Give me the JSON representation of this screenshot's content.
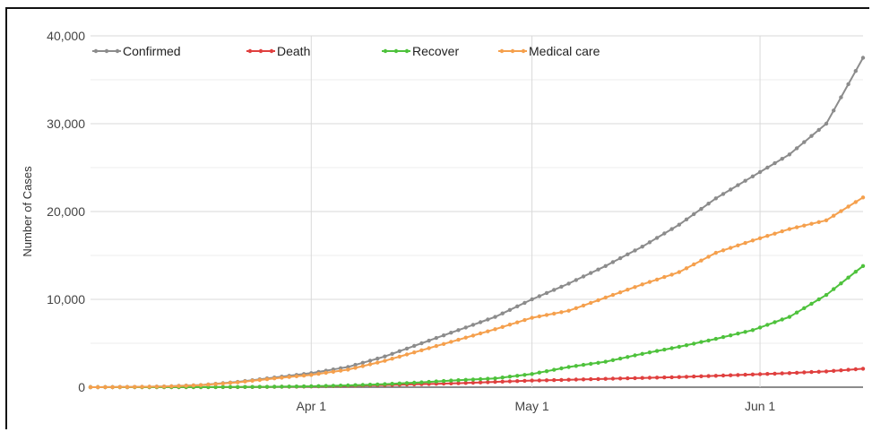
{
  "chart_data": {
    "type": "line",
    "title": "",
    "xlabel": "",
    "ylabel": "Number of Cases",
    "ylim": [
      0,
      40000
    ],
    "yticks": [
      "0",
      "10,000",
      "20,000",
      "30,000",
      "40,000"
    ],
    "ytick_values": [
      0,
      10000,
      20000,
      30000,
      40000
    ],
    "xticks": [
      "Apr 1",
      "May 1",
      "Jun 1"
    ],
    "xtick_dates": [
      "2020-04-01",
      "2020-05-01",
      "2020-06-01"
    ],
    "x": [
      "2020-03-02",
      "2020-03-07",
      "2020-03-12",
      "2020-03-17",
      "2020-03-22",
      "2020-03-27",
      "2020-04-01",
      "2020-04-06",
      "2020-04-11",
      "2020-04-16",
      "2020-04-21",
      "2020-04-26",
      "2020-05-01",
      "2020-05-06",
      "2020-05-11",
      "2020-05-16",
      "2020-05-21",
      "2020-05-26",
      "2020-05-31",
      "2020-06-05",
      "2020-06-10",
      "2020-06-15"
    ],
    "legend_position": "top",
    "grid": true,
    "series": [
      {
        "name": "Confirmed",
        "color": "#8c8c8c",
        "values": [
          0,
          20,
          80,
          250,
          600,
          1100,
          1600,
          2300,
          3500,
          5000,
          6500,
          8000,
          10000,
          11800,
          13800,
          16000,
          18500,
          21500,
          24000,
          26500,
          30000,
          37500
        ]
      },
      {
        "name": "Death",
        "color": "#e0403f",
        "values": [
          0,
          0,
          2,
          5,
          15,
          40,
          80,
          150,
          250,
          350,
          450,
          600,
          750,
          850,
          950,
          1050,
          1150,
          1300,
          1450,
          1600,
          1800,
          2100
        ]
      },
      {
        "name": "Recover",
        "color": "#4ec23c",
        "values": [
          0,
          0,
          5,
          10,
          20,
          50,
          100,
          200,
          350,
          550,
          800,
          1000,
          1500,
          2300,
          2900,
          3800,
          4600,
          5500,
          6500,
          8000,
          10500,
          13800
        ]
      },
      {
        "name": "Medical care",
        "color": "#f5a04d",
        "values": [
          0,
          20,
          70,
          230,
          550,
          1000,
          1400,
          2000,
          3000,
          4200,
          5400,
          6600,
          7900,
          8700,
          10200,
          11700,
          13100,
          15300,
          16700,
          18000,
          19000,
          21600
        ]
      }
    ]
  }
}
